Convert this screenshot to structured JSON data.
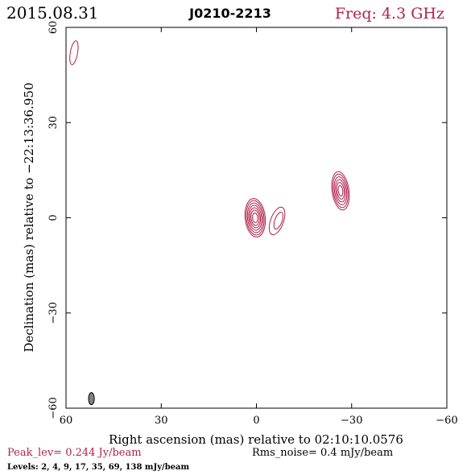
{
  "header": {
    "date": "2015.08.31",
    "source": "J0210-2213",
    "freq": "Freq: 4.3 GHz"
  },
  "axes": {
    "xlabel": "Right ascension (mas) relative to 02:10:10.0576",
    "ylabel": "Declination (mas) relative to −22:13:36.950",
    "x_range": [
      60,
      -60
    ],
    "y_range": [
      -60,
      60
    ],
    "x_ticks": [
      60,
      30,
      0,
      -30,
      -60
    ],
    "y_ticks": [
      -60,
      -30,
      0,
      30,
      60
    ],
    "x_tick_labels": [
      "60",
      "30",
      "0",
      "−30",
      "−60"
    ],
    "y_tick_labels": [
      "−60",
      "−30",
      "0",
      "30",
      "60"
    ]
  },
  "footer": {
    "peak": "Peak_lev=  0.244 Jy/beam",
    "rms": "Rms_noise=  0.4 mJy/beam",
    "levels": "Levels:   2,    4,    9,   17,   35,   69,  138 mJy/beam"
  },
  "colors": {
    "contour": "#b0224a",
    "frame": "#000000",
    "beam": "#808080",
    "text": "#000000"
  },
  "chart_data": {
    "type": "contour",
    "components": [
      {
        "x": 0.4,
        "y": 0.0,
        "levels": 7
      },
      {
        "x": -6.5,
        "y": -1.0,
        "levels": 2
      },
      {
        "x": -26.5,
        "y": 8.5,
        "levels": 6
      },
      {
        "x": 57.5,
        "y": 52.0,
        "levels": 1
      }
    ],
    "beam": {
      "x": 52.0,
      "y": -57.0
    }
  }
}
